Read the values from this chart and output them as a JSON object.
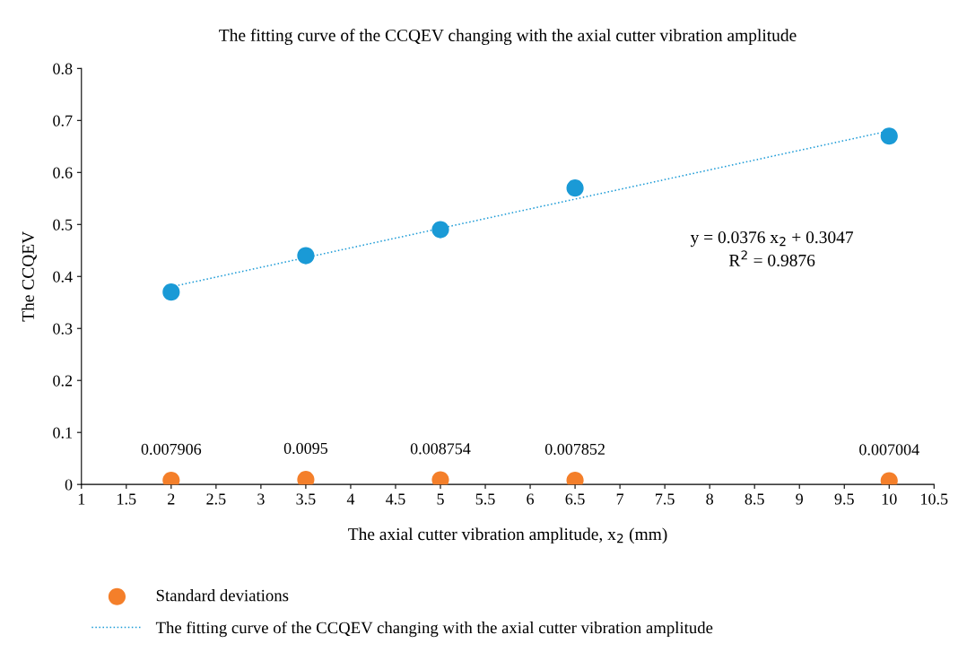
{
  "chart_data": {
    "type": "scatter",
    "title": "The fitting curve of the CCQEV changing with the axial cutter vibration amplitude",
    "xlabel": "The axial cutter vibration amplitude, x$_{2}$ (mm)",
    "ylabel": "The CCQEV",
    "xlim": [
      1,
      10.5
    ],
    "xticks": [
      1,
      1.5,
      2,
      2.5,
      3,
      3.5,
      4,
      4.5,
      5,
      5.5,
      6,
      6.5,
      7,
      7.5,
      8,
      8.5,
      9,
      9.5,
      10,
      10.5
    ],
    "ylim": [
      0,
      0.8
    ],
    "yticks": [
      0,
      0.1,
      0.2,
      0.3,
      0.4,
      0.5,
      0.6,
      0.7,
      0.8
    ],
    "grid": false,
    "legend": "bottom",
    "marker": "circle",
    "annotations": [
      "y = 0.0376 x$_{2}$ + 0.3047",
      "R$^{2}$ = 0.9876"
    ],
    "series": [
      {
        "color": "#1a9ad6",
        "x": [
          2,
          3.5,
          5,
          6.5,
          10
        ],
        "values": [
          0.37,
          0.44,
          0.49,
          0.57,
          0.67
        ]
      },
      {
        "name": "Standard deviations",
        "color": "#f47f2a",
        "x": [
          2,
          3.5,
          5,
          6.5,
          10
        ],
        "values": [
          0.007906,
          0.0095,
          0.008754,
          0.007852,
          0.007004
        ],
        "value_labels": [
          "0.007906",
          "0.0095",
          "0.008754",
          "0.007852",
          "0.007004"
        ]
      },
      {
        "type": "line",
        "name": "The fitting curve of the CCQEV changing with the axial cutter vibration amplitude",
        "color": "#1a9ad6",
        "line_style": "dotted",
        "marker": "none",
        "x": [
          2,
          10
        ],
        "values": [
          0.38,
          0.68
        ]
      }
    ]
  }
}
